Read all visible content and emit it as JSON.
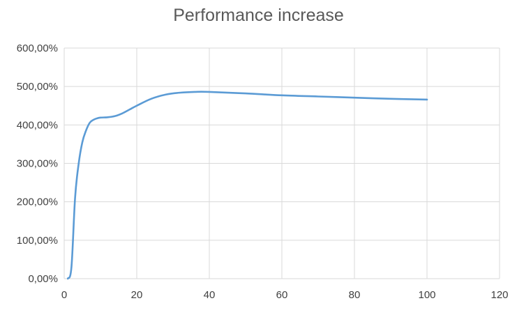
{
  "chart_data": {
    "type": "line",
    "title": "Performance increase",
    "xlabel": "",
    "ylabel": "",
    "xlim": [
      0,
      120
    ],
    "ylim": [
      0,
      600
    ],
    "x_ticks": [
      0,
      20,
      40,
      60,
      80,
      100,
      120
    ],
    "y_ticks": [
      0,
      100,
      200,
      300,
      400,
      500,
      600
    ],
    "x_tick_labels": [
      "0",
      "20",
      "40",
      "60",
      "80",
      "100",
      "120"
    ],
    "y_tick_labels": [
      "0,00%",
      "100,00%",
      "200,00%",
      "300,00%",
      "400,00%",
      "500,00%",
      "600,00%"
    ],
    "grid": true,
    "legend": "none",
    "series": [
      {
        "color": "#5b9bd5",
        "x": [
          1,
          2,
          3,
          4,
          5,
          6,
          7,
          8,
          9,
          10,
          12,
          14,
          16,
          18,
          20,
          24,
          28,
          32,
          36,
          40,
          50,
          60,
          70,
          80,
          90,
          100
        ],
        "y": [
          0,
          30,
          210,
          300,
          355,
          385,
          405,
          413,
          417,
          419,
          420,
          423,
          430,
          440,
          450,
          468,
          479,
          484,
          486,
          486,
          482,
          477,
          474,
          471,
          468,
          466
        ]
      }
    ]
  },
  "colors": {
    "line": "#5b9bd5",
    "grid": "#d9d9d9",
    "text": "#404040",
    "title": "#595959"
  }
}
